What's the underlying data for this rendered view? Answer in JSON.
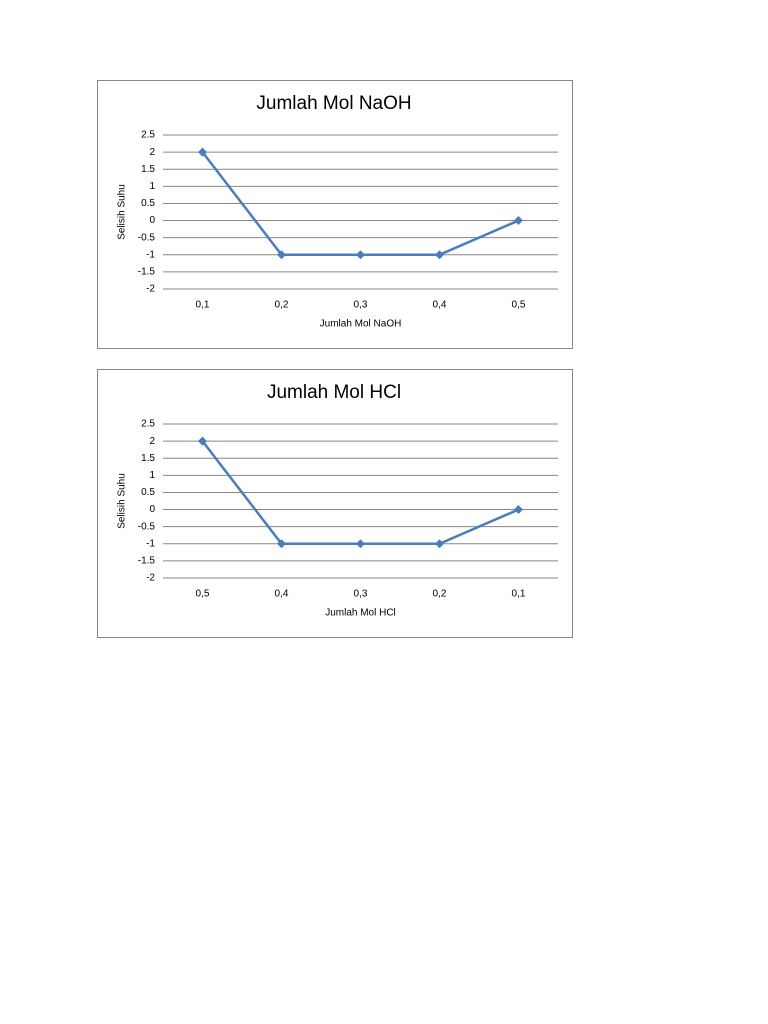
{
  "chart_data": [
    {
      "type": "line",
      "title": "Jumlah  Mol NaOH",
      "x_label": "Jumlah  Mol NaOH",
      "y_label": "Selisih  Suhu",
      "categories": [
        "0,1",
        "0,2",
        "0,3",
        "0,4",
        "0,5"
      ],
      "values": [
        2,
        -1,
        -1,
        -1,
        0
      ],
      "color": "#4a7ebb",
      "ylim": [
        -2,
        2.5
      ],
      "yticks": [
        -2,
        -1.5,
        -1,
        -0.5,
        0,
        0.5,
        1,
        1.5,
        2,
        2.5
      ],
      "grid": true
    },
    {
      "type": "line",
      "title": "Jumlah  Mol HCl",
      "x_label": "Jumlah  Mol HCl",
      "y_label": "Selisih  Suhu",
      "categories": [
        "0,5",
        "0,4",
        "0,3",
        "0,2",
        "0,1"
      ],
      "values": [
        2,
        -1,
        -1,
        -1,
        0
      ],
      "color": "#4a7ebb",
      "ylim": [
        -2,
        2.5
      ],
      "yticks": [
        -2,
        -1.5,
        -1,
        -0.5,
        0,
        0.5,
        1,
        1.5,
        2,
        2.5
      ],
      "grid": true
    }
  ]
}
